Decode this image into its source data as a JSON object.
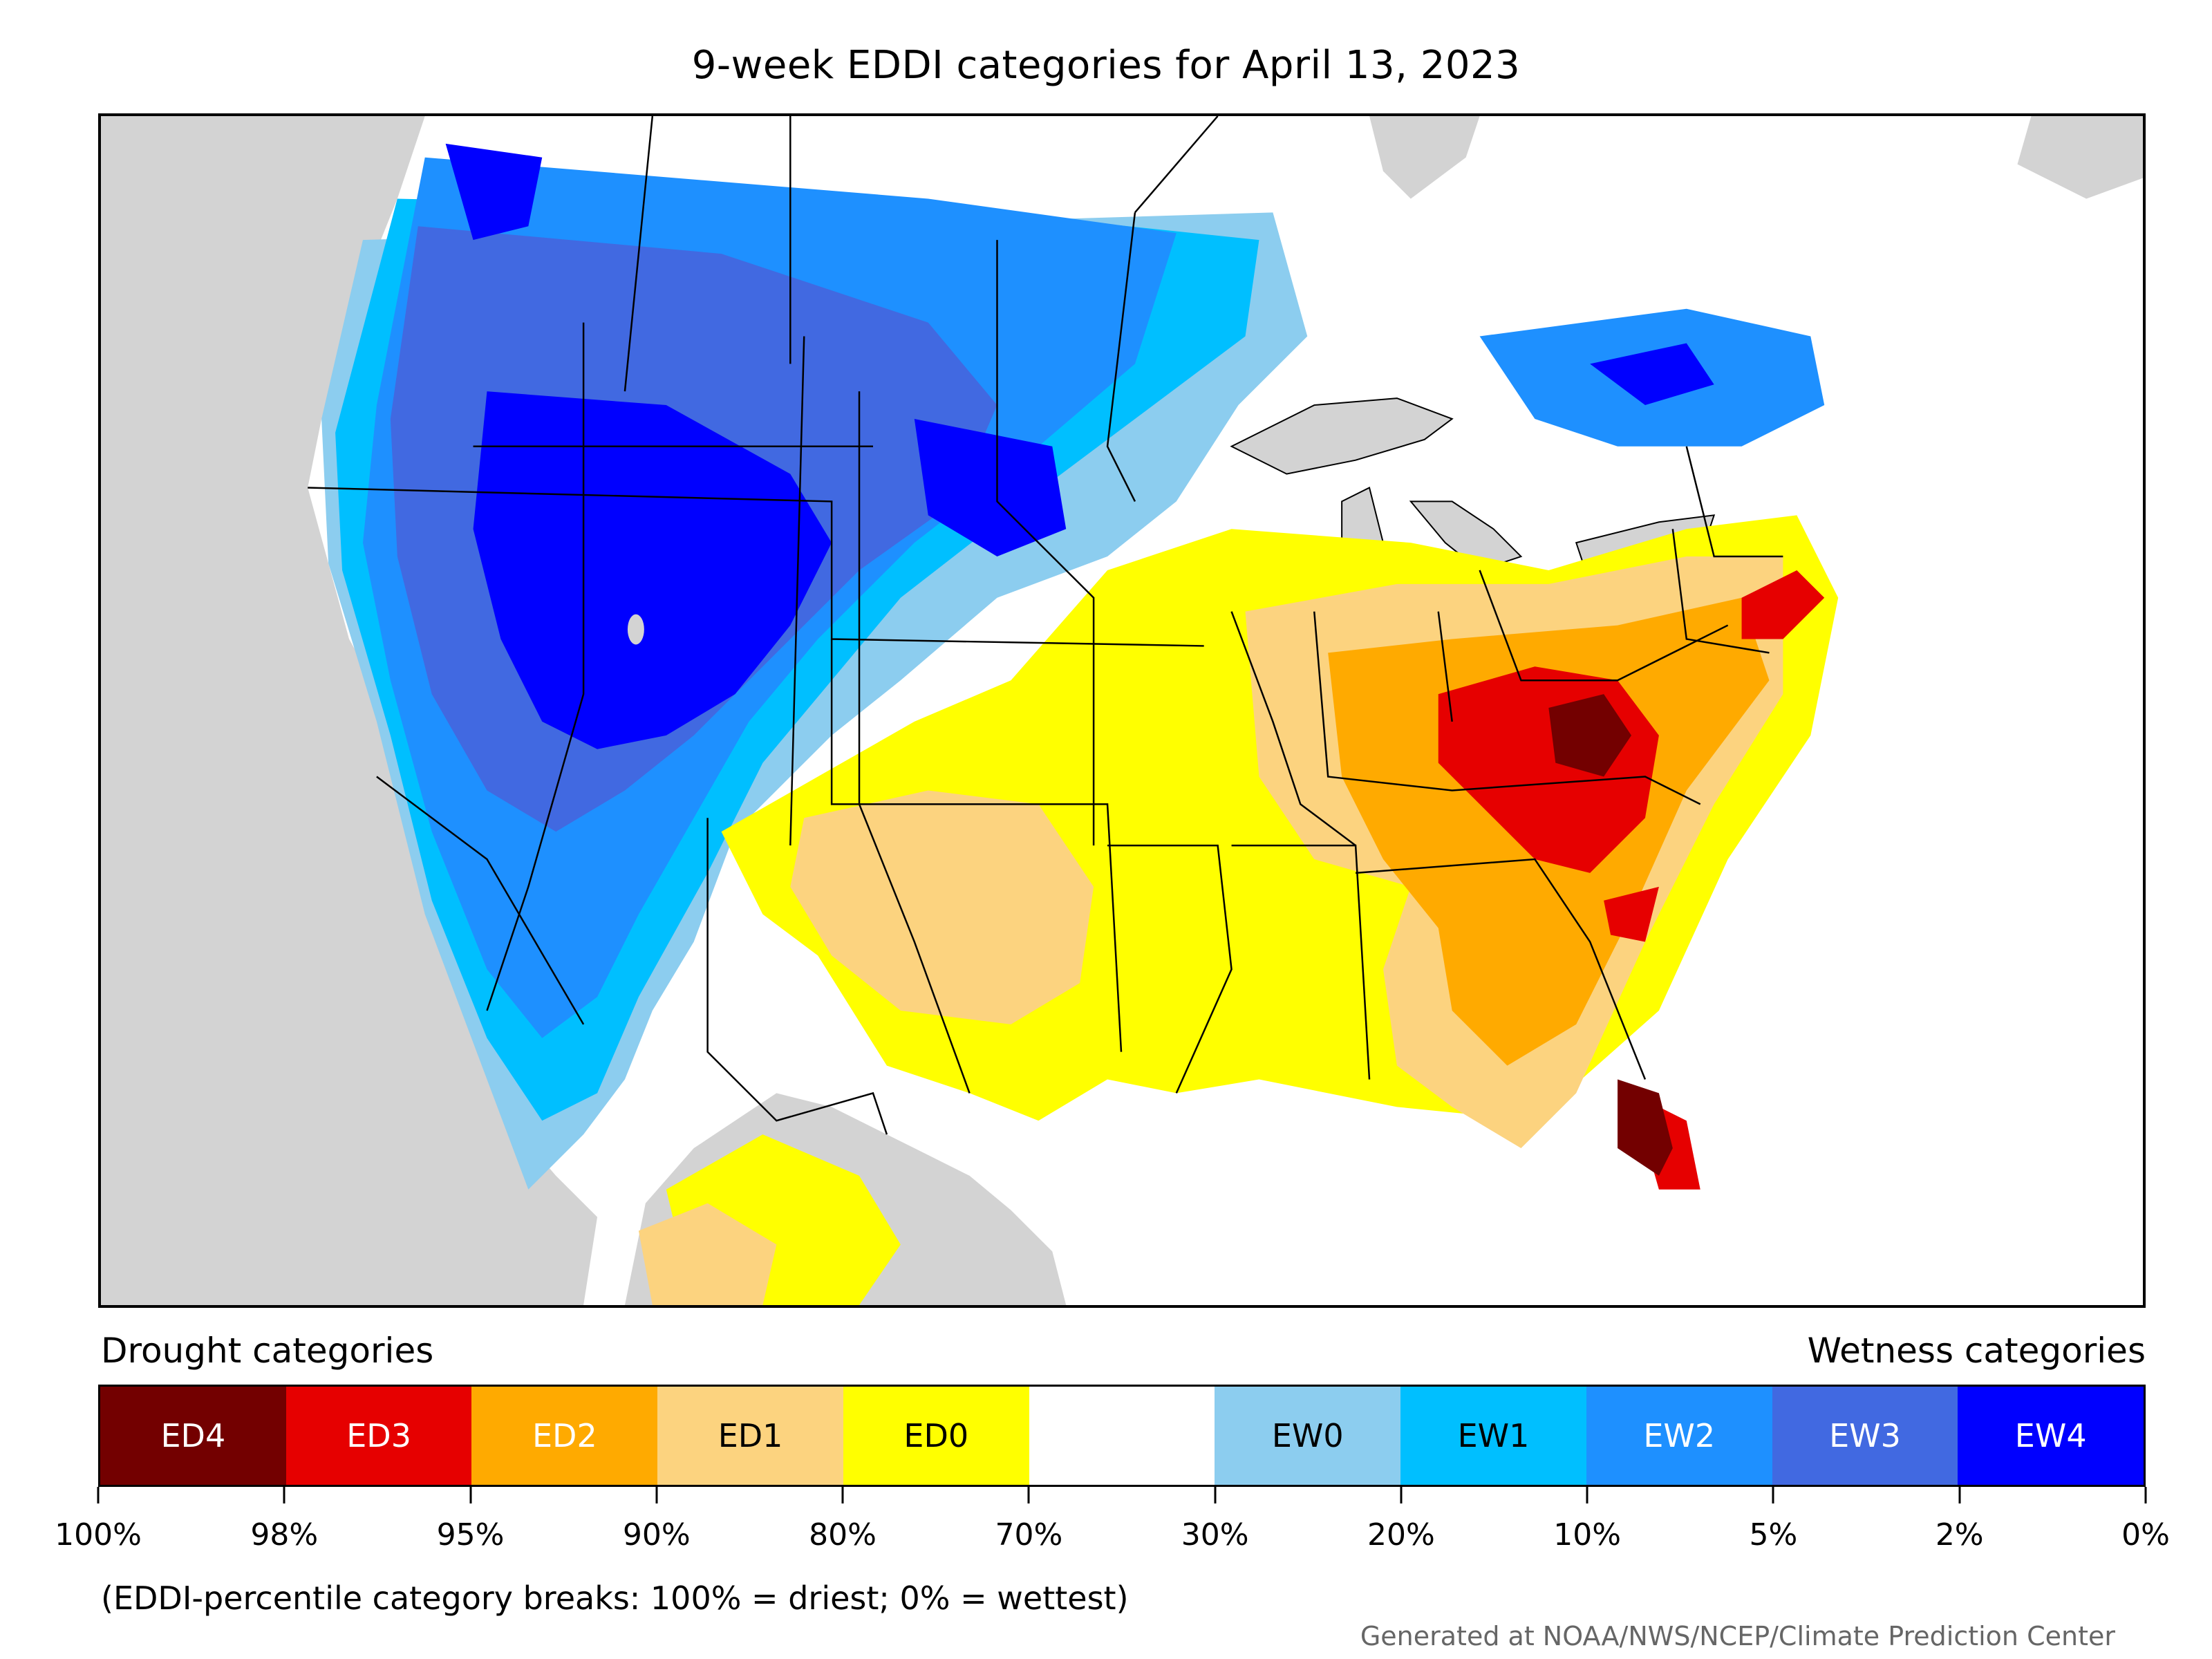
{
  "title": "9-week EDDI categories for April 13, 2023",
  "legend": {
    "left_header": "Drought categories",
    "right_header": "Wetness categories",
    "categories": [
      {
        "label": "ED4",
        "color": "#730000",
        "text_color": "#ffffff"
      },
      {
        "label": "ED3",
        "color": "#e60000",
        "text_color": "#ffffff"
      },
      {
        "label": "ED2",
        "color": "#ffaa00",
        "text_color": "#ffffff"
      },
      {
        "label": "ED1",
        "color": "#fcd37f",
        "text_color": "#000000"
      },
      {
        "label": "ED0",
        "color": "#ffff00",
        "text_color": "#000000"
      },
      {
        "label": "",
        "color": "#ffffff",
        "text_color": "#000000"
      },
      {
        "label": "EW0",
        "color": "#8ccdef",
        "text_color": "#000000"
      },
      {
        "label": "EW1",
        "color": "#00bfff",
        "text_color": "#000000"
      },
      {
        "label": "EW2",
        "color": "#1e90ff",
        "text_color": "#ffffff"
      },
      {
        "label": "EW3",
        "color": "#4169e1",
        "text_color": "#ffffff"
      },
      {
        "label": "EW4",
        "color": "#0000ff",
        "text_color": "#ffffff"
      }
    ],
    "tick_labels": [
      "100%",
      "98%",
      "95%",
      "90%",
      "80%",
      "70%",
      "30%",
      "20%",
      "10%",
      "5%",
      "2%",
      "0%"
    ]
  },
  "note": "(EDDI-percentile category breaks: 100% = driest; 0% = wettest)",
  "credit": "Generated at NOAA/NWS/NCEP/Climate Prediction Center",
  "colors": {
    "ocean": "#d3d3d3",
    "land_neutral": "#ffffff",
    "border": "#000000"
  }
}
